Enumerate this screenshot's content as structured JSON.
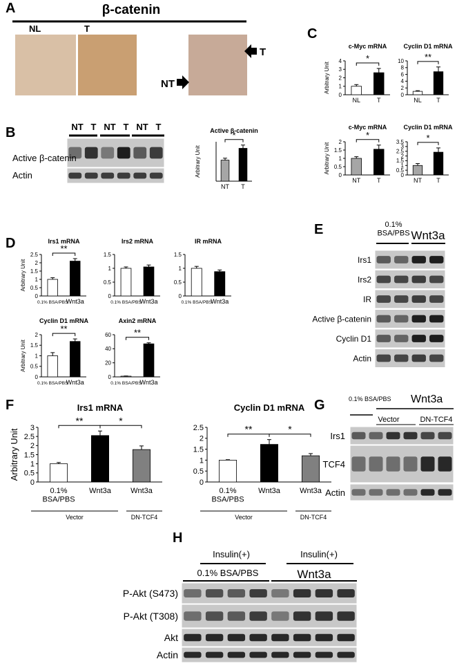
{
  "panels": {
    "A": {
      "letter": "A",
      "title": "β-catenin",
      "labels": [
        "NL",
        "T",
        "NT",
        "T"
      ]
    },
    "B": {
      "letter": "B",
      "lanes": [
        "NT",
        "T",
        "NT",
        "T",
        "NT",
        "T"
      ],
      "rows": [
        "Active β-catenin",
        "Actin"
      ]
    },
    "C": {
      "letter": "C"
    },
    "D": {
      "letter": "D"
    },
    "E": {
      "letter": "E",
      "control": "0.1% BSA/PBS",
      "treatment": "Wnt3a",
      "rows": [
        "Irs1",
        "Irs2",
        "IR",
        "Active β-catenin",
        "Cyclin D1",
        "Actin"
      ]
    },
    "F": {
      "letter": "F"
    },
    "G": {
      "letter": "G",
      "control": "0.1% BSA/PBS",
      "treatment": "Wnt3a",
      "groups": [
        "Vector",
        "DN-TCF4"
      ],
      "rows": [
        "Irs1",
        "TCF4",
        "Actin"
      ]
    },
    "H": {
      "letter": "H",
      "insulin": [
        "Insulin(+)",
        "Insulin(+)"
      ],
      "control": "0.1% BSA/PBS",
      "treatment": "Wnt3a",
      "rows": [
        "P-Akt (S473)",
        "P-Akt (T308)",
        "Akt",
        "Actin"
      ]
    }
  },
  "chart_data": [
    {
      "type": "bar",
      "title": "c-Myc mRNA",
      "ylabel": "Arbitrary Unit",
      "categories": [
        "NL",
        "T"
      ],
      "values": [
        1,
        2.6
      ],
      "errors": [
        0.2,
        0.5
      ],
      "colors": [
        "#ffffff",
        "#000000"
      ],
      "ylim": [
        0,
        4
      ],
      "yticks": [
        0,
        1,
        2,
        3,
        4
      ],
      "annotations": [
        "*"
      ]
    },
    {
      "type": "bar",
      "title": "Cyclin D1 mRNA",
      "categories": [
        "NL",
        "T"
      ],
      "values": [
        1,
        6.8
      ],
      "errors": [
        0.2,
        1.4
      ],
      "colors": [
        "#ffffff",
        "#000000"
      ],
      "ylim": [
        0,
        10
      ],
      "yticks": [
        0,
        2,
        4,
        6,
        8,
        10
      ],
      "annotations": [
        "**"
      ]
    },
    {
      "type": "bar",
      "title": "c-Myc mRNA",
      "ylabel": "Arbitrary Unit",
      "categories": [
        "NT",
        "T"
      ],
      "values": [
        1,
        1.55
      ],
      "errors": [
        0.1,
        0.25
      ],
      "colors": [
        "#a6a6a6",
        "#000000"
      ],
      "ylim": [
        0,
        2
      ],
      "yticks": [
        0,
        0.5,
        1,
        1.5,
        2
      ],
      "annotations": [
        "*"
      ]
    },
    {
      "type": "bar",
      "title": "Cyclin D1 mRNA",
      "categories": [
        "NT",
        "T"
      ],
      "values": [
        1,
        2.4
      ],
      "errors": [
        0.2,
        0.45
      ],
      "colors": [
        "#a6a6a6",
        "#000000"
      ],
      "ylim": [
        0,
        3.5
      ],
      "yticks": [
        0,
        0.5,
        1,
        1.5,
        2,
        2.5,
        3,
        3.5
      ],
      "annotations": [
        "*"
      ]
    },
    {
      "type": "bar",
      "title": "Active β-catenin",
      "ylabel": "Arbitrary Unit",
      "categories": [
        "NT",
        "T"
      ],
      "values": [
        0.32,
        0.5
      ],
      "errors": [
        0.03,
        0.05
      ],
      "colors": [
        "#a6a6a6",
        "#000000"
      ],
      "ylim": [
        0,
        0.6
      ],
      "annotations": [
        "*"
      ]
    },
    {
      "type": "bar",
      "title": "Irs1 mRNA",
      "ylabel": "Arbitrary Unit",
      "categories": [
        "0.1% BSA/PBS",
        "Wnt3a"
      ],
      "values": [
        1,
        2.1
      ],
      "errors": [
        0.1,
        0.15
      ],
      "colors": [
        "#ffffff",
        "#000000"
      ],
      "ylim": [
        0,
        2.5
      ],
      "yticks": [
        0,
        0.5,
        1,
        1.5,
        2,
        2.5
      ],
      "annotations": [
        "**"
      ]
    },
    {
      "type": "bar",
      "title": "Irs2 mRNA",
      "categories": [
        "0.1% BSA/PBS",
        "Wnt3a"
      ],
      "values": [
        1,
        1.05
      ],
      "errors": [
        0.05,
        0.07
      ],
      "colors": [
        "#ffffff",
        "#000000"
      ],
      "ylim": [
        0,
        1.5
      ],
      "yticks": [
        0,
        0.5,
        1,
        1.5
      ]
    },
    {
      "type": "bar",
      "title": "IR mRNA",
      "categories": [
        "0.1% BSA/PBS",
        "Wnt3a"
      ],
      "values": [
        1,
        0.88
      ],
      "errors": [
        0.07,
        0.06
      ],
      "colors": [
        "#ffffff",
        "#000000"
      ],
      "ylim": [
        0,
        1.5
      ],
      "yticks": [
        0,
        0.5,
        1,
        1.5
      ]
    },
    {
      "type": "bar",
      "title": "Cyclin D1 mRNA",
      "ylabel": "Arbitrary Unit",
      "categories": [
        "0.1% BSA/PBS",
        "Wnt3a"
      ],
      "values": [
        1,
        1.68
      ],
      "errors": [
        0.15,
        0.12
      ],
      "colors": [
        "#ffffff",
        "#000000"
      ],
      "ylim": [
        0,
        2
      ],
      "yticks": [
        0,
        0.5,
        1,
        1.5,
        2
      ],
      "annotations": [
        "**"
      ]
    },
    {
      "type": "bar",
      "title": "Axin2 mRNA",
      "categories": [
        "0.1% BSA/PBS",
        "Wnt3a"
      ],
      "values": [
        1,
        47
      ],
      "errors": [
        0.3,
        1.5
      ],
      "colors": [
        "#ffffff",
        "#000000"
      ],
      "ylim": [
        0,
        60
      ],
      "yticks": [
        0,
        20,
        40,
        60
      ],
      "annotations": [
        "**"
      ]
    },
    {
      "type": "bar",
      "title": "Irs1 mRNA",
      "ylabel": "Arbitrary Unit",
      "categories": [
        "0.1% BSA/PBS",
        "Wnt3a",
        "Wnt3a"
      ],
      "values": [
        1,
        2.55,
        1.78
      ],
      "errors": [
        0.07,
        0.25,
        0.2
      ],
      "colors": [
        "#ffffff",
        "#000000",
        "#808080"
      ],
      "ylim": [
        0,
        3
      ],
      "yticks": [
        0,
        0.5,
        1,
        1.5,
        2,
        2.5,
        3
      ],
      "annotations": [
        "**",
        "*"
      ],
      "groups": [
        "Vector",
        "DN-TCF4"
      ]
    },
    {
      "type": "bar",
      "title": "Cyclin D1 mRNA",
      "categories": [
        "0.1% BSA/PBS",
        "Wnt3a",
        "Wnt3a"
      ],
      "values": [
        1,
        1.72,
        1.2
      ],
      "errors": [
        0.02,
        0.22,
        0.1
      ],
      "colors": [
        "#ffffff",
        "#000000",
        "#808080"
      ],
      "ylim": [
        0,
        2.5
      ],
      "yticks": [
        0,
        0.5,
        1,
        1.5,
        2,
        2.5
      ],
      "annotations": [
        "**",
        "*"
      ],
      "groups": [
        "Vector",
        "DN-TCF4"
      ]
    }
  ]
}
